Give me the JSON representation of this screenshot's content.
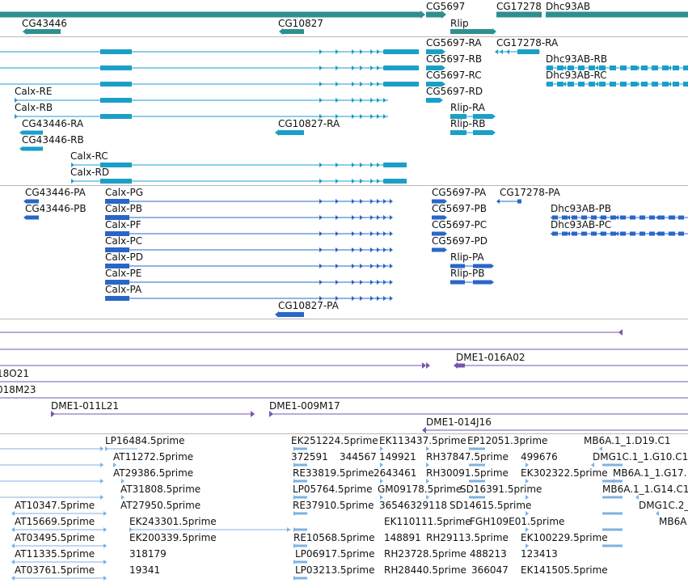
{
  "colors": {
    "gene": "#2f8f8f",
    "flybase": "#1aa0c8",
    "refseq": "#2a66c8",
    "bac": "#7656b0",
    "est": "#7fb2e0"
  },
  "tracks": {
    "genes": {
      "labels": [
        "CG5697",
        "CG17278",
        "Dhc93AB",
        "CG43446",
        "CG10827",
        "Rlip"
      ]
    },
    "flybase_transcripts": {
      "labels": [
        "CG5697-RA",
        "CG17278-RA",
        "CG5697-RB",
        "Dhc93AB-RB",
        "CG5697-RC",
        "Dhc93AB-RC",
        "Calx-RE",
        "CG5697-RD",
        "Calx-RB",
        "Rlip-RA",
        "CG43446-RA",
        "CG10827-RA",
        "Rlip-RB",
        "CG43446-RB",
        "Calx-RC",
        "Calx-RD"
      ]
    },
    "refseq_transcripts": {
      "labels": [
        "CG43446-PA",
        "Calx-PG",
        "CG5697-PA",
        "CG17278-PA",
        "CG43446-PB",
        "Calx-PB",
        "CG5697-PB",
        "Dhc93AB-PB",
        "Calx-PF",
        "CG5697-PC",
        "Dhc93AB-PC",
        "Calx-PC",
        "CG5697-PD",
        "Calx-PD",
        "Rlip-PA",
        "Calx-PE",
        "Rlip-PB",
        "Calx-PA",
        "CG10827-PA"
      ]
    },
    "bac_clones": {
      "labels": [
        "DME1-016A02",
        "18O21",
        "018M23",
        "DME1-011L21",
        "DME1-009M17",
        "DME1-014J16"
      ]
    },
    "est_alignments": {
      "labels": [
        "LP16484.5prime",
        "EK251224.5prime",
        "EK113437.5prime",
        "EP12051.3prime",
        "MB6A.1_1.D19.C1",
        "AT11272.5prime",
        "372591",
        "344567",
        "149921",
        "RH37847.5prime",
        "499676",
        "DMG1C.1_1.G10.C1",
        "AT29386.5prime",
        "RE33819.5prime",
        "2643461",
        "RH30091.5prime",
        "EK302322.5prime",
        "MB6A.1_1.G17.",
        "AT31808.5prime",
        "LP05764.5prime",
        "GM09178.5prime",
        "SD16391.5prime",
        "MB6A.1_1.G14.C1",
        "AT10347.5prime",
        "AT27950.5prime",
        "RE37910.5prime",
        "36546329118",
        "SD14615.5prime",
        "DMG1C.2_",
        "AT15669.5prime",
        "EK243301.5prime",
        "EK110111.5prime",
        "FGH109E01.5prime",
        "MB6A",
        "AT03495.5prime",
        "EK200339.5prime",
        "RE10568.5prime",
        "148891",
        "RH29113.5prime",
        "EK100229.5prime",
        "AT11335.5prime",
        "318179",
        "LP06917.5prime",
        "RH23728.5prime",
        "488213",
        "123413",
        "AT03761.5prime",
        "19341",
        "LP03213.5prime",
        "RH28440.5prime",
        "366047",
        "EK141505.5prime"
      ]
    }
  }
}
